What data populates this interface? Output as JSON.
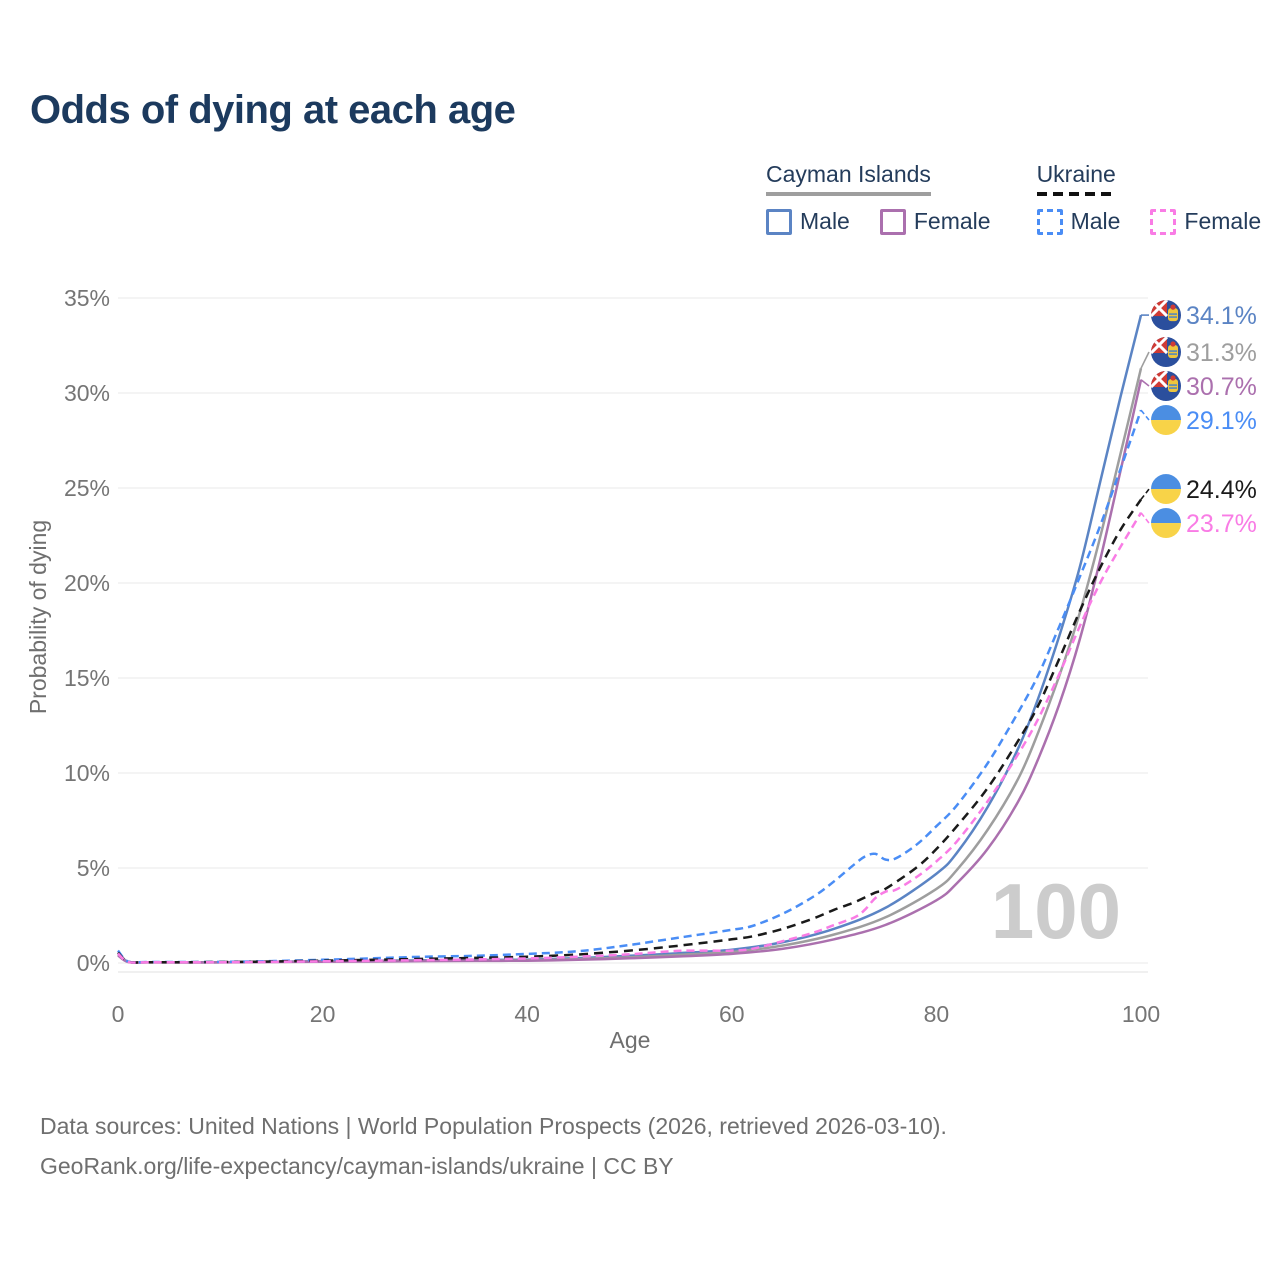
{
  "header": {
    "title": "Odds of dying at each age"
  },
  "legend": {
    "groups": [
      {
        "label": "Cayman Islands",
        "underline_color": "#9e9e9e",
        "underline_style": "solid",
        "items": [
          {
            "label": "Male",
            "color": "#5b84c4",
            "style": "solid"
          },
          {
            "label": "Female",
            "color": "#ab70ae",
            "style": "solid"
          }
        ]
      },
      {
        "label": "Ukraine",
        "underline_color": "#111111",
        "underline_style": "dashed",
        "items": [
          {
            "label": "Male",
            "color": "#4a8df5",
            "style": "dashed"
          },
          {
            "label": "Female",
            "color": "#f97ce5",
            "style": "dashed"
          }
        ]
      }
    ]
  },
  "chart_data": {
    "type": "line",
    "title": "Odds of dying at each age",
    "xlabel": "Age",
    "ylabel": "Probability of dying",
    "xlim": [
      0,
      100
    ],
    "ylim": [
      0,
      35
    ],
    "x_ticks": [
      0,
      20,
      40,
      60,
      80,
      100
    ],
    "x_tick_labels": [
      "0",
      "20",
      "40",
      "60",
      "80",
      "100"
    ],
    "y_ticks": [
      0,
      5,
      10,
      15,
      20,
      25,
      30,
      35
    ],
    "y_tick_labels": [
      "0%",
      "5%",
      "10%",
      "15%",
      "20%",
      "25%",
      "30%",
      "35%"
    ],
    "grid": "horizontal",
    "legend_position": "top-right",
    "watermark": "100",
    "series": [
      {
        "id": "cayman-islands-male",
        "name": "Cayman Islands Male",
        "country": "cayman-islands",
        "sex": "male",
        "color": "#5b84c4",
        "dash": "",
        "end_label": "34.1%",
        "end_value": 34.1,
        "points": [
          [
            0,
            0.5
          ],
          [
            1,
            0.07
          ],
          [
            3,
            0.04
          ],
          [
            10,
            0.04
          ],
          [
            15,
            0.07
          ],
          [
            20,
            0.1
          ],
          [
            25,
            0.12
          ],
          [
            30,
            0.14
          ],
          [
            35,
            0.16
          ],
          [
            40,
            0.18
          ],
          [
            45,
            0.26
          ],
          [
            50,
            0.38
          ],
          [
            55,
            0.52
          ],
          [
            60,
            0.7
          ],
          [
            65,
            1.1
          ],
          [
            70,
            1.8
          ],
          [
            75,
            2.9
          ],
          [
            80,
            4.7
          ],
          [
            82,
            5.8
          ],
          [
            85,
            8.2
          ],
          [
            88,
            11.3
          ],
          [
            90,
            14.0
          ],
          [
            92,
            17.2
          ],
          [
            94,
            20.8
          ],
          [
            96,
            25.3
          ],
          [
            98,
            29.8
          ],
          [
            100,
            34.1
          ]
        ]
      },
      {
        "id": "cayman-islands-both",
        "name": "Cayman Islands Both sexes",
        "country": "cayman-islands",
        "sex": "both",
        "color": "#9e9e9e",
        "dash": "",
        "end_label": "31.3%",
        "end_value": 31.3,
        "points": [
          [
            0,
            0.45
          ],
          [
            1,
            0.06
          ],
          [
            3,
            0.03
          ],
          [
            10,
            0.03
          ],
          [
            15,
            0.06
          ],
          [
            20,
            0.08
          ],
          [
            25,
            0.1
          ],
          [
            30,
            0.12
          ],
          [
            35,
            0.13
          ],
          [
            40,
            0.15
          ],
          [
            45,
            0.21
          ],
          [
            50,
            0.3
          ],
          [
            55,
            0.43
          ],
          [
            60,
            0.58
          ],
          [
            65,
            0.92
          ],
          [
            70,
            1.5
          ],
          [
            75,
            2.4
          ],
          [
            80,
            3.9
          ],
          [
            82,
            4.9
          ],
          [
            85,
            7.0
          ],
          [
            88,
            9.7
          ],
          [
            90,
            12.2
          ],
          [
            92,
            15.1
          ],
          [
            94,
            18.4
          ],
          [
            96,
            22.4
          ],
          [
            98,
            26.8
          ],
          [
            100,
            31.3
          ]
        ]
      },
      {
        "id": "cayman-islands-female",
        "name": "Cayman Islands Female",
        "country": "cayman-islands",
        "sex": "female",
        "color": "#ab70ae",
        "dash": "",
        "end_label": "30.7%",
        "end_value": 30.7,
        "points": [
          [
            0,
            0.4
          ],
          [
            1,
            0.05
          ],
          [
            3,
            0.03
          ],
          [
            10,
            0.03
          ],
          [
            15,
            0.05
          ],
          [
            20,
            0.07
          ],
          [
            25,
            0.08
          ],
          [
            30,
            0.1
          ],
          [
            35,
            0.11
          ],
          [
            40,
            0.12
          ],
          [
            45,
            0.17
          ],
          [
            50,
            0.25
          ],
          [
            55,
            0.35
          ],
          [
            60,
            0.48
          ],
          [
            65,
            0.75
          ],
          [
            70,
            1.25
          ],
          [
            75,
            2.0
          ],
          [
            80,
            3.3
          ],
          [
            82,
            4.2
          ],
          [
            85,
            6.0
          ],
          [
            88,
            8.5
          ],
          [
            90,
            10.8
          ],
          [
            92,
            13.6
          ],
          [
            94,
            17.0
          ],
          [
            96,
            21.2
          ],
          [
            98,
            25.9
          ],
          [
            100,
            30.7
          ]
        ]
      },
      {
        "id": "ukraine-male",
        "name": "Ukraine Male",
        "country": "ukraine",
        "sex": "male",
        "color": "#4a8df5",
        "dash": "8 5",
        "end_label": "29.1%",
        "end_value": 29.1,
        "points": [
          [
            0,
            0.65
          ],
          [
            1,
            0.08
          ],
          [
            3,
            0.05
          ],
          [
            10,
            0.06
          ],
          [
            15,
            0.1
          ],
          [
            20,
            0.17
          ],
          [
            25,
            0.25
          ],
          [
            30,
            0.33
          ],
          [
            35,
            0.38
          ],
          [
            40,
            0.48
          ],
          [
            45,
            0.62
          ],
          [
            50,
            0.95
          ],
          [
            55,
            1.35
          ],
          [
            60,
            1.75
          ],
          [
            62,
            1.95
          ],
          [
            65,
            2.6
          ],
          [
            68,
            3.5
          ],
          [
            70,
            4.3
          ],
          [
            72,
            5.2
          ],
          [
            73,
            5.6
          ],
          [
            74,
            5.75
          ],
          [
            75,
            5.45
          ],
          [
            76,
            5.5
          ],
          [
            78,
            6.2
          ],
          [
            80,
            7.2
          ],
          [
            82,
            8.3
          ],
          [
            85,
            10.5
          ],
          [
            88,
            13.2
          ],
          [
            90,
            15.2
          ],
          [
            92,
            17.7
          ],
          [
            94,
            20.3
          ],
          [
            96,
            23.0
          ],
          [
            98,
            26.0
          ],
          [
            100,
            29.1
          ]
        ]
      },
      {
        "id": "ukraine-both",
        "name": "Ukraine Both sexes",
        "country": "ukraine",
        "sex": "both",
        "color": "#1a1a1a",
        "dash": "9 6",
        "end_label": "24.4%",
        "end_value": 24.4,
        "points": [
          [
            0,
            0.55
          ],
          [
            1,
            0.07
          ],
          [
            3,
            0.04
          ],
          [
            10,
            0.05
          ],
          [
            15,
            0.08
          ],
          [
            20,
            0.12
          ],
          [
            25,
            0.17
          ],
          [
            30,
            0.22
          ],
          [
            35,
            0.27
          ],
          [
            40,
            0.33
          ],
          [
            45,
            0.45
          ],
          [
            50,
            0.65
          ],
          [
            55,
            0.92
          ],
          [
            60,
            1.25
          ],
          [
            62,
            1.4
          ],
          [
            65,
            1.8
          ],
          [
            68,
            2.35
          ],
          [
            70,
            2.8
          ],
          [
            72,
            3.2
          ],
          [
            74,
            3.7
          ],
          [
            75,
            3.9
          ],
          [
            78,
            5.0
          ],
          [
            80,
            6.0
          ],
          [
            82,
            7.2
          ],
          [
            85,
            9.2
          ],
          [
            88,
            11.7
          ],
          [
            90,
            13.6
          ],
          [
            92,
            16.0
          ],
          [
            94,
            18.5
          ],
          [
            96,
            20.8
          ],
          [
            98,
            22.8
          ],
          [
            100,
            24.4
          ]
        ]
      },
      {
        "id": "ukraine-female",
        "name": "Ukraine Female",
        "country": "ukraine",
        "sex": "female",
        "color": "#f97ce5",
        "dash": "8 5",
        "end_label": "23.7%",
        "end_value": 23.7,
        "points": [
          [
            0,
            0.5
          ],
          [
            1,
            0.06
          ],
          [
            3,
            0.04
          ],
          [
            10,
            0.04
          ],
          [
            15,
            0.06
          ],
          [
            20,
            0.09
          ],
          [
            25,
            0.12
          ],
          [
            30,
            0.15
          ],
          [
            35,
            0.19
          ],
          [
            40,
            0.24
          ],
          [
            45,
            0.33
          ],
          [
            50,
            0.46
          ],
          [
            55,
            0.64
          ],
          [
            60,
            0.65
          ],
          [
            62,
            0.75
          ],
          [
            65,
            1.15
          ],
          [
            68,
            1.6
          ],
          [
            70,
            2.0
          ],
          [
            72,
            2.4
          ],
          [
            73,
            2.8
          ],
          [
            74,
            3.4
          ],
          [
            75,
            3.75
          ],
          [
            76,
            3.85
          ],
          [
            78,
            4.5
          ],
          [
            80,
            5.35
          ],
          [
            82,
            6.4
          ],
          [
            85,
            8.5
          ],
          [
            88,
            11.0
          ],
          [
            90,
            12.9
          ],
          [
            92,
            15.2
          ],
          [
            94,
            17.7
          ],
          [
            96,
            20.0
          ],
          [
            98,
            21.9
          ],
          [
            100,
            23.7
          ]
        ]
      }
    ]
  },
  "footer": {
    "line1": "Data sources: United Nations | World Population Prospects (2026, retrieved 2026-03-10).",
    "line2": "GeoRank.org/life-expectancy/cayman-islands/ukraine | CC BY"
  }
}
